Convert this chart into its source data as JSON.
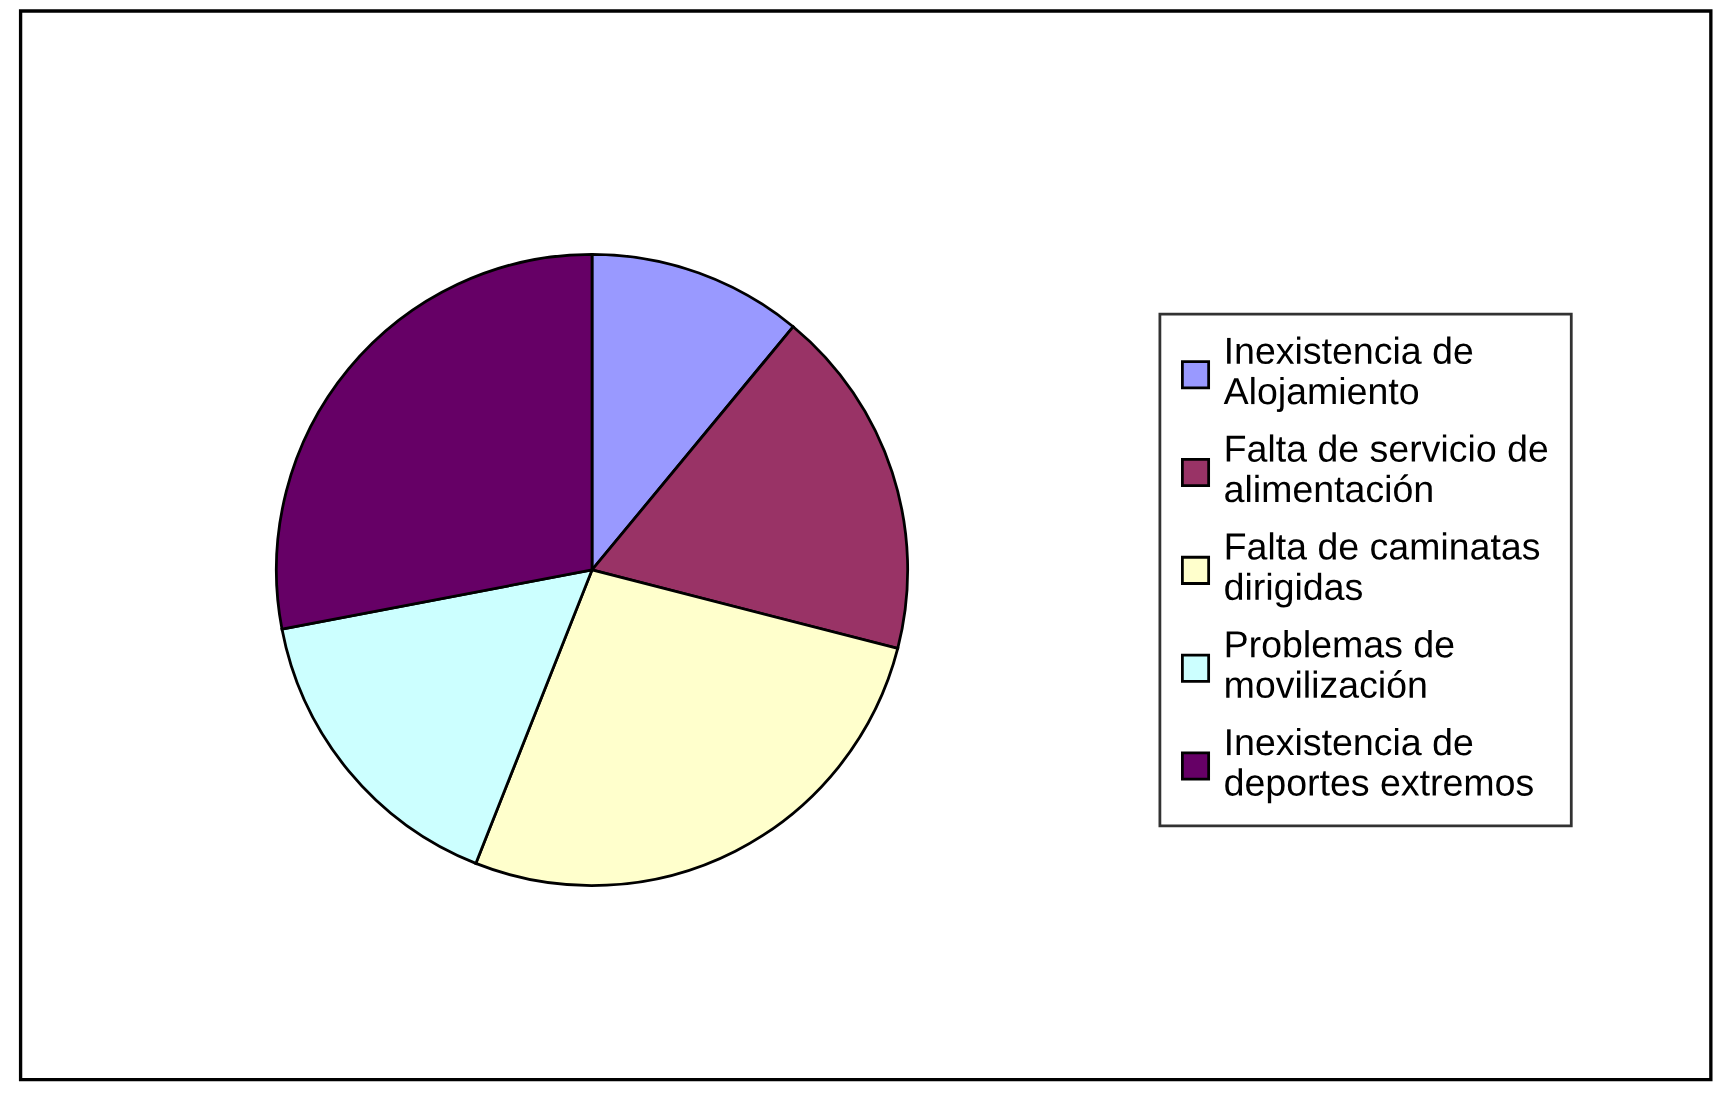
{
  "chart_data": {
    "type": "pie",
    "categories": [
      "Inexistencia de Alojamiento",
      "Falta de servicio de alimentación",
      "Falta de caminatas dirigidas",
      "Problemas de movilización",
      "Inexistencia de deportes extremos"
    ],
    "values": [
      11,
      18,
      27,
      16,
      28
    ],
    "colors": [
      "#9999ff",
      "#993366",
      "#ffffcc",
      "#ccffff",
      "#660066"
    ],
    "legend": "right"
  }
}
